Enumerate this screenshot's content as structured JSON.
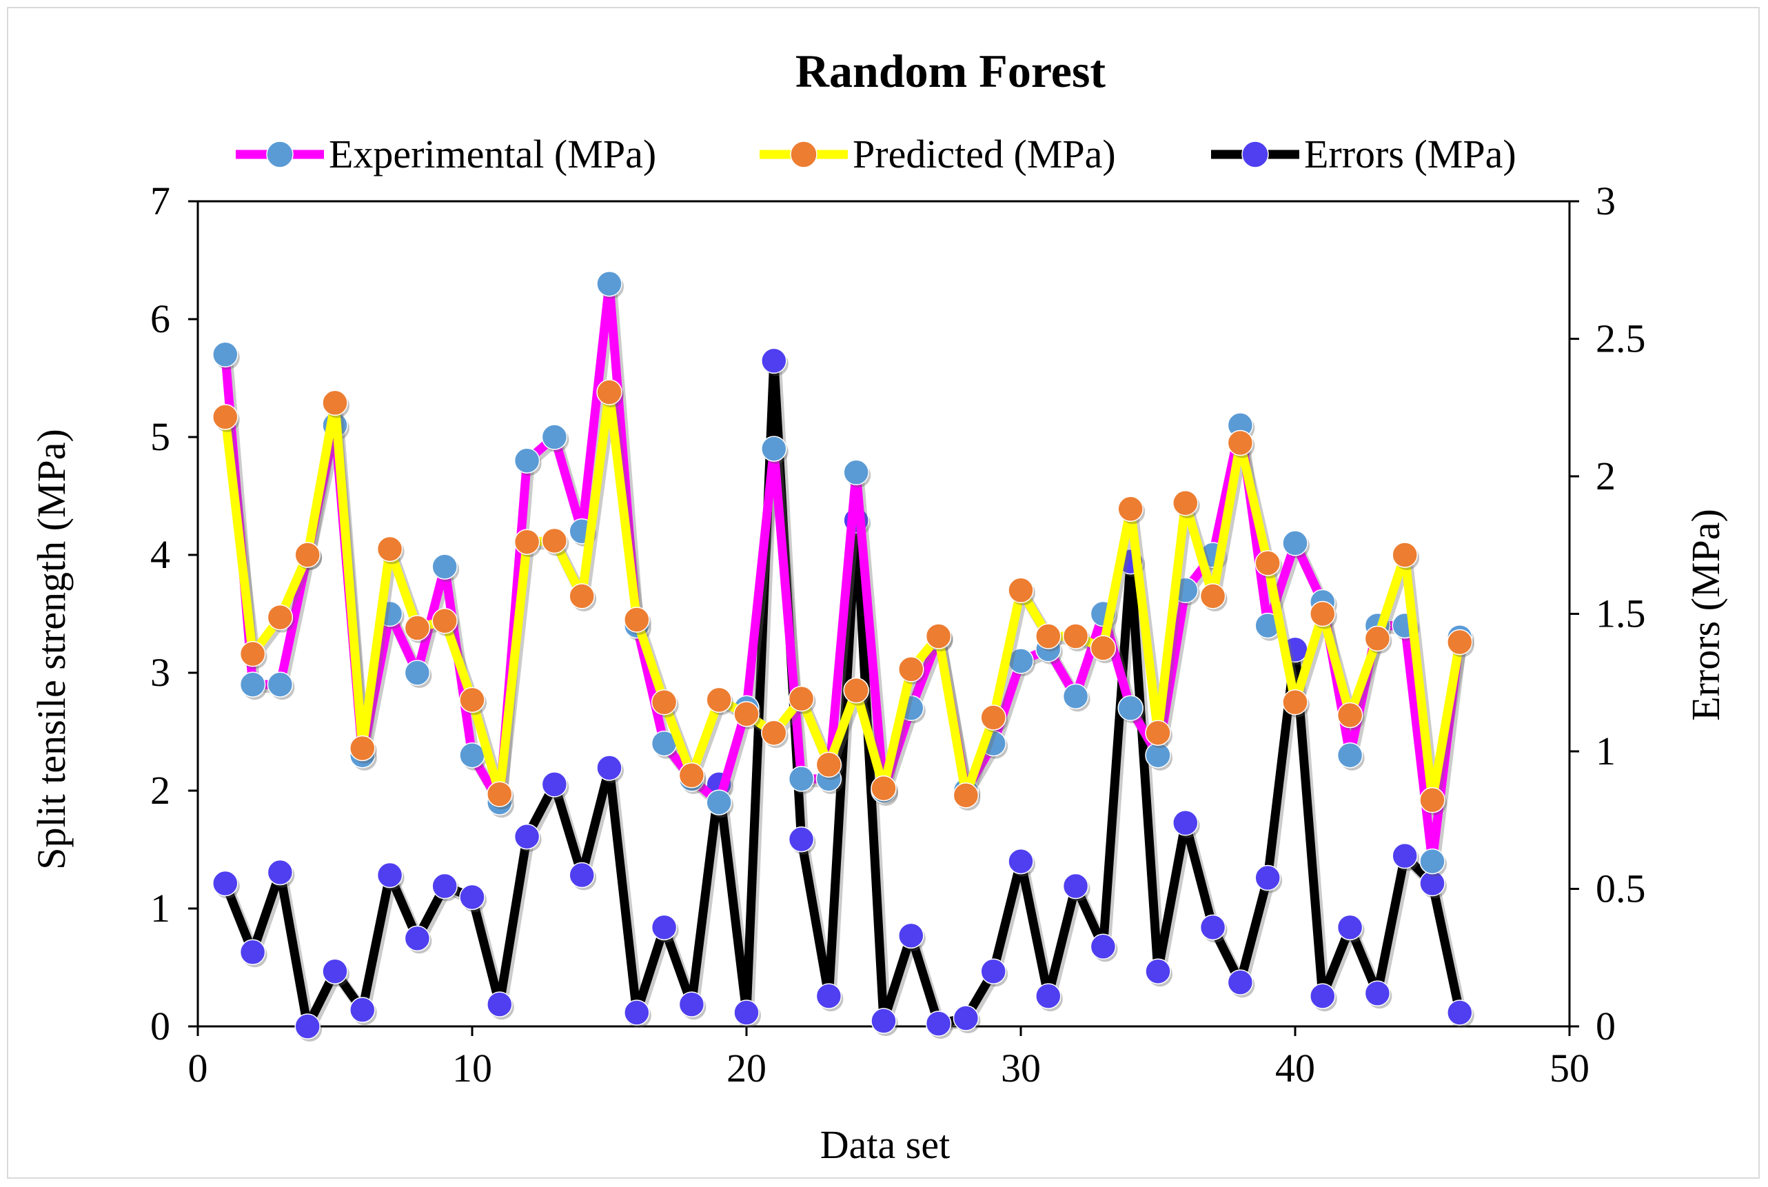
{
  "chart_data": {
    "type": "line",
    "title": "Random Forest",
    "xlabel": "Data set",
    "ylabel": "Split tensile strength (MPa)",
    "y2label": "Errors (MPa)",
    "xlim": [
      0,
      50
    ],
    "ylim": [
      0,
      7
    ],
    "y2lim": [
      0,
      3
    ],
    "xticks": [
      0,
      10,
      20,
      30,
      40,
      50
    ],
    "yticks": [
      0,
      1,
      2,
      3,
      4,
      5,
      6,
      7
    ],
    "y2ticks": [
      "0",
      "0.5",
      "1",
      "1.5",
      "2",
      "2.5",
      "3"
    ],
    "legend_position": "top",
    "x": [
      1,
      2,
      3,
      4,
      5,
      6,
      7,
      8,
      9,
      10,
      11,
      12,
      13,
      14,
      15,
      16,
      17,
      18,
      19,
      20,
      21,
      22,
      23,
      24,
      25,
      26,
      27,
      28,
      29,
      30,
      31,
      32,
      33,
      34,
      35,
      36,
      37,
      38,
      39,
      40,
      41,
      42,
      43,
      44,
      45,
      46
    ],
    "series": [
      {
        "name": "Experimental (MPa)",
        "axis": "left",
        "line_color": "#ff00ff",
        "marker_color": "#5b9bd5",
        "values": [
          5.7,
          2.9,
          2.9,
          4.0,
          5.1,
          2.3,
          3.5,
          3.0,
          3.9,
          2.3,
          1.9,
          4.8,
          5.0,
          4.2,
          6.3,
          3.4,
          2.4,
          2.1,
          1.9,
          2.7,
          4.9,
          2.1,
          2.1,
          4.7,
          2.0,
          2.7,
          3.3,
          2.0,
          2.4,
          3.1,
          3.2,
          2.8,
          3.5,
          2.7,
          2.3,
          3.7,
          4.0,
          5.1,
          3.4,
          4.1,
          3.6,
          2.3,
          3.4,
          3.4,
          1.4,
          3.3
        ]
      },
      {
        "name": "Predicted (MPa)",
        "axis": "left",
        "line_color": "#ffff00",
        "marker_color": "#ed7d31",
        "values": [
          5.17,
          3.16,
          3.47,
          4.0,
          5.29,
          2.36,
          4.05,
          3.38,
          3.44,
          2.77,
          1.97,
          4.11,
          4.12,
          3.65,
          5.38,
          3.45,
          2.75,
          2.13,
          2.77,
          2.65,
          2.49,
          2.78,
          2.22,
          2.85,
          2.02,
          3.03,
          3.31,
          1.96,
          2.62,
          3.7,
          3.31,
          3.31,
          3.21,
          4.39,
          2.49,
          4.44,
          3.65,
          4.95,
          3.93,
          2.75,
          3.5,
          2.64,
          3.29,
          4.0,
          1.92,
          3.26
        ]
      },
      {
        "name": "Errors (MPa)",
        "axis": "right",
        "line_color": "#000000",
        "marker_color": "#4f3ff0",
        "values": [
          0.52,
          0.27,
          0.56,
          0.0,
          0.2,
          0.06,
          0.55,
          0.32,
          0.51,
          0.47,
          0.08,
          0.69,
          0.88,
          0.55,
          0.94,
          0.05,
          0.36,
          0.08,
          0.88,
          0.05,
          2.42,
          0.68,
          0.11,
          1.84,
          0.02,
          0.33,
          0.01,
          0.03,
          0.2,
          0.6,
          0.11,
          0.51,
          0.29,
          1.69,
          0.2,
          0.74,
          0.36,
          0.16,
          0.54,
          1.37,
          0.11,
          0.36,
          0.12,
          0.62,
          0.52,
          0.05
        ]
      }
    ]
  }
}
